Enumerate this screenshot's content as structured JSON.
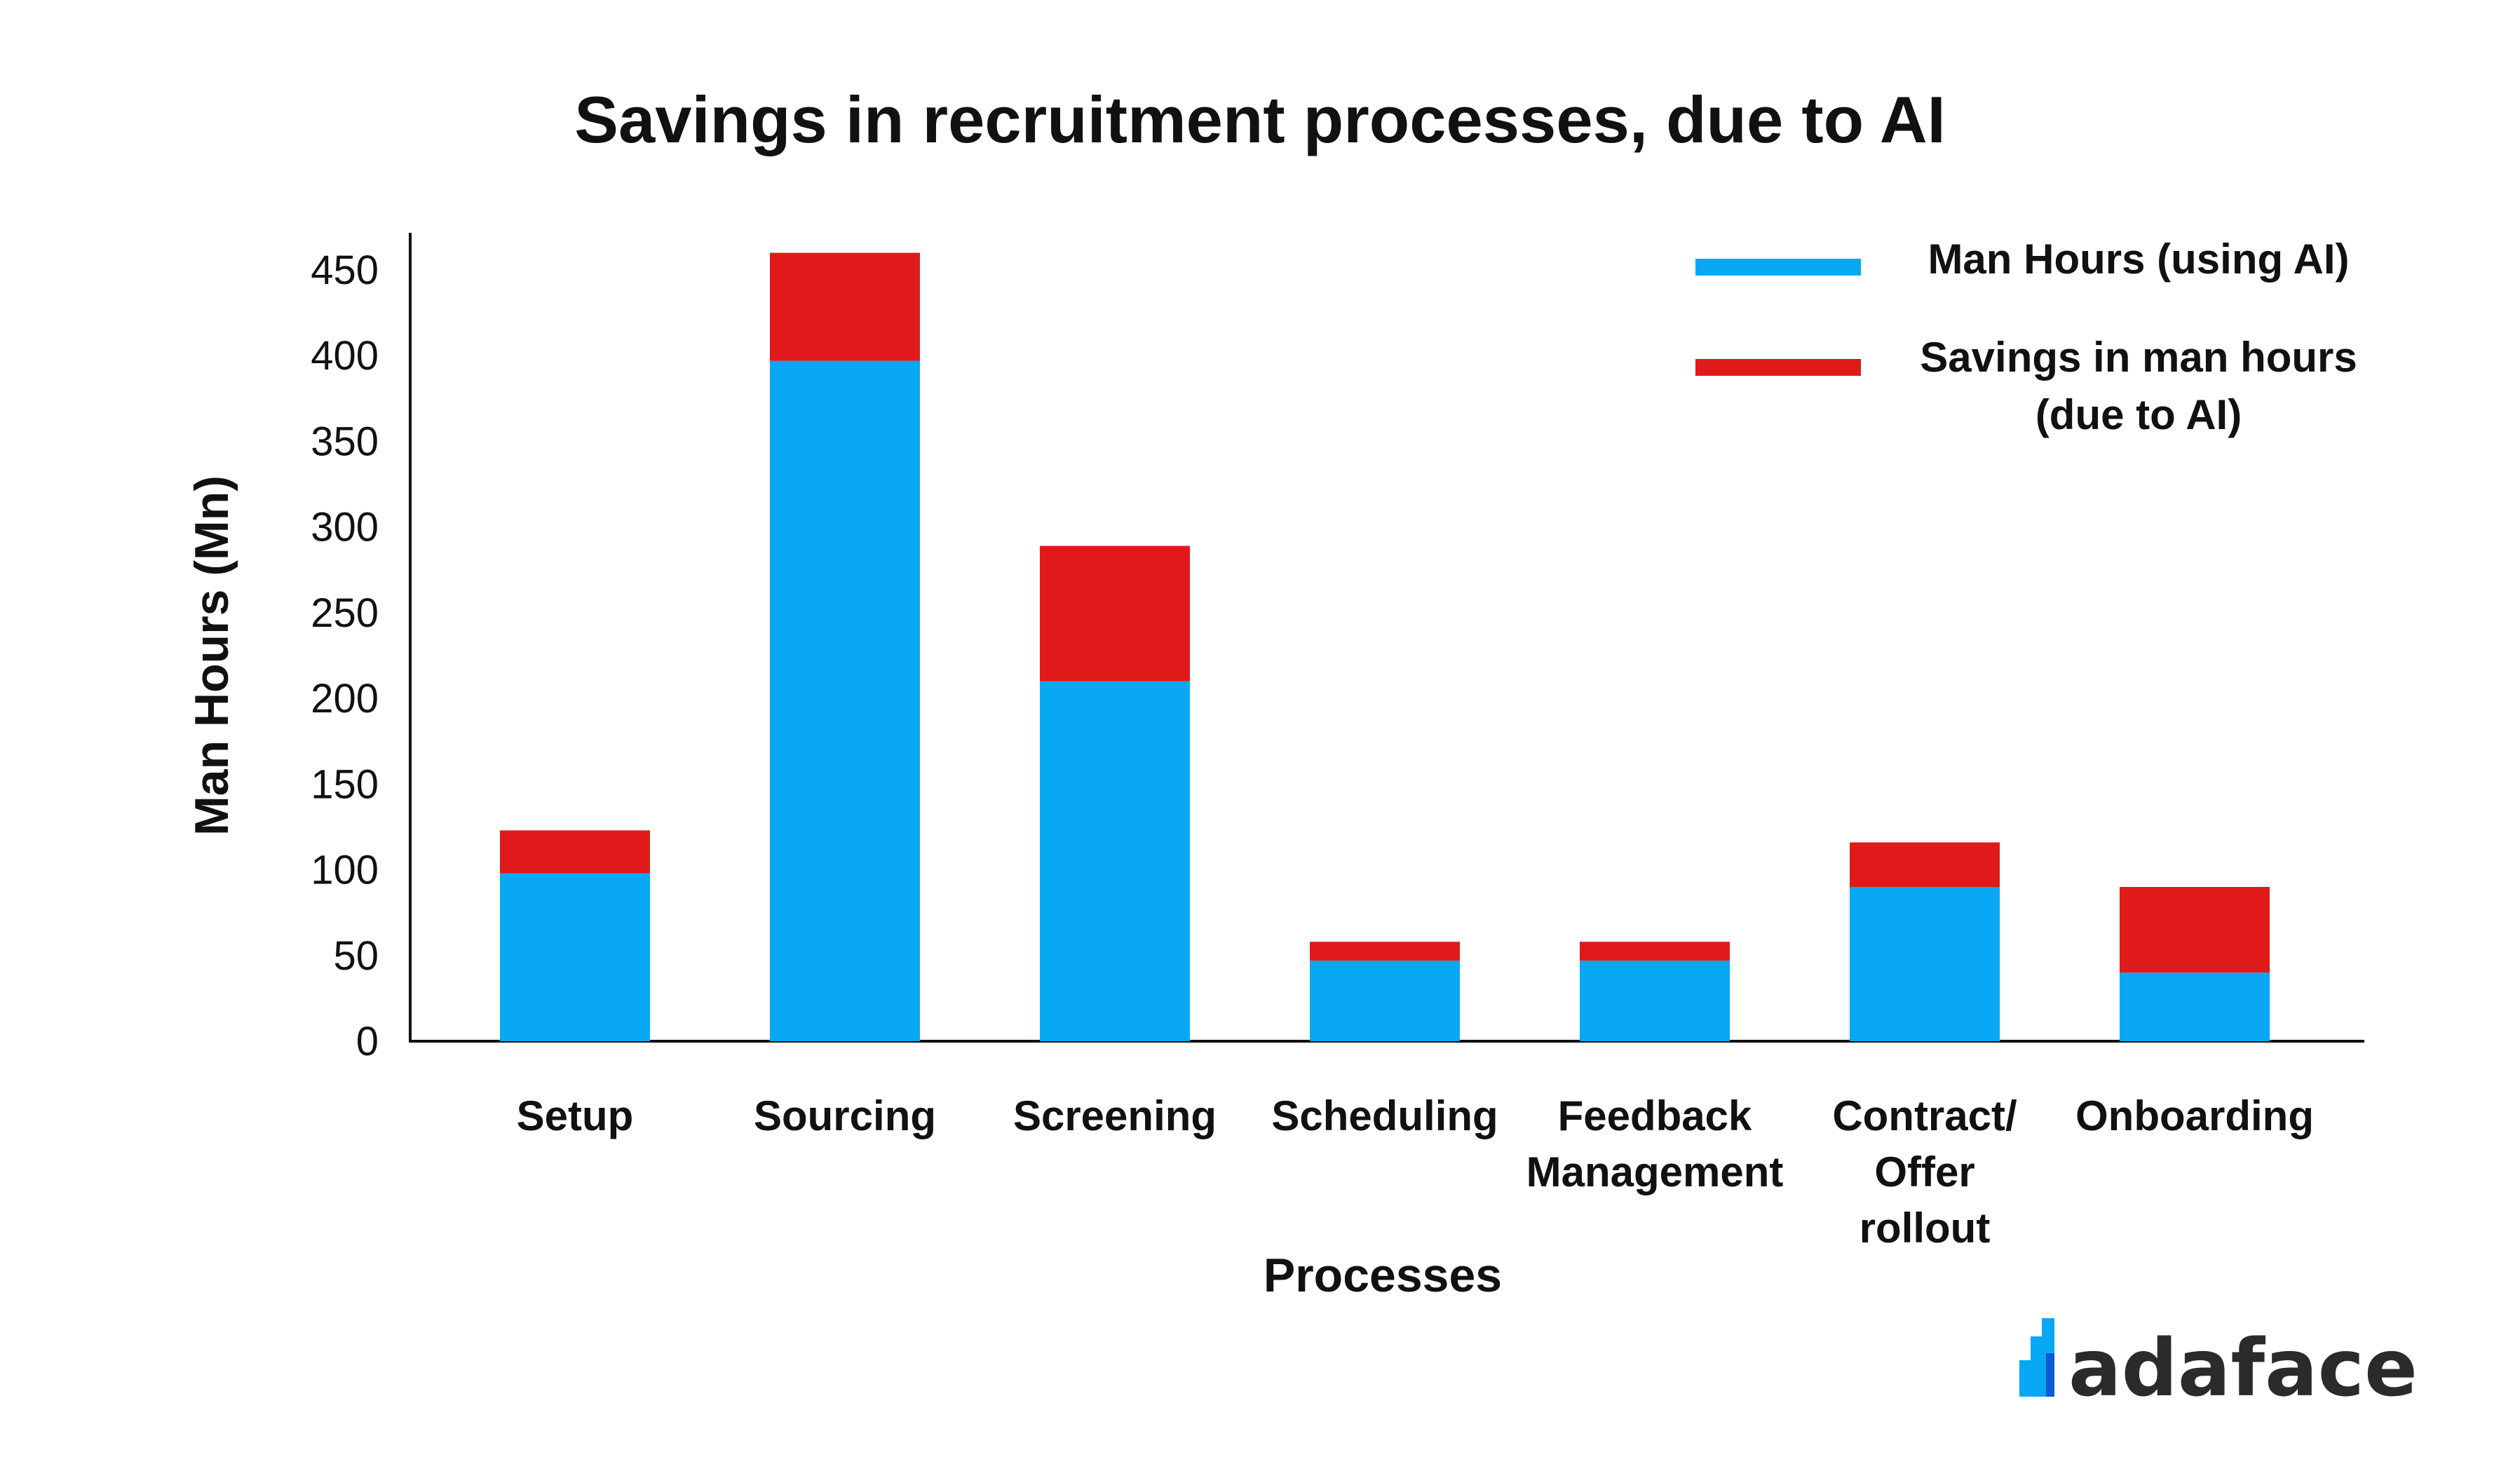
{
  "chart_data": {
    "type": "bar",
    "stacked": true,
    "title": "Savings in recruitment processes, due to AI",
    "xlabel": "Processes",
    "ylabel": "Man Hours (Mn)",
    "ylim": [
      0,
      450
    ],
    "yticks": [
      0,
      50,
      100,
      150,
      200,
      250,
      300,
      350,
      400,
      450
    ],
    "categories": [
      [
        "Setup"
      ],
      [
        "Sourcing"
      ],
      [
        "Screening"
      ],
      [
        "Scheduling"
      ],
      [
        "Feedback",
        "Management"
      ],
      [
        "Contract/",
        "Offer",
        "rollout"
      ],
      [
        "Onboarding"
      ]
    ],
    "series": [
      {
        "name": "Man Hours (using AI)",
        "color": "#08a8f5",
        "values": [
          98,
          397,
          210,
          47,
          47,
          90,
          40
        ]
      },
      {
        "name": "Savings in man hours (due to AI)",
        "color": "#e01a1a",
        "values": [
          25,
          63,
          79,
          11,
          11,
          26,
          50
        ]
      }
    ],
    "legend_position": "top-right",
    "grid": false
  },
  "legend": {
    "items": [
      {
        "lines": [
          "Man Hours (using AI)"
        ],
        "color": "#08a8f5"
      },
      {
        "lines": [
          "Savings in man hours",
          "(due to AI)"
        ],
        "color": "#e01a1a"
      }
    ]
  },
  "brand": {
    "name": "adaface",
    "icon": "bar-logo-icon",
    "colors": [
      "#08a8f5",
      "#0a5bd4"
    ]
  }
}
